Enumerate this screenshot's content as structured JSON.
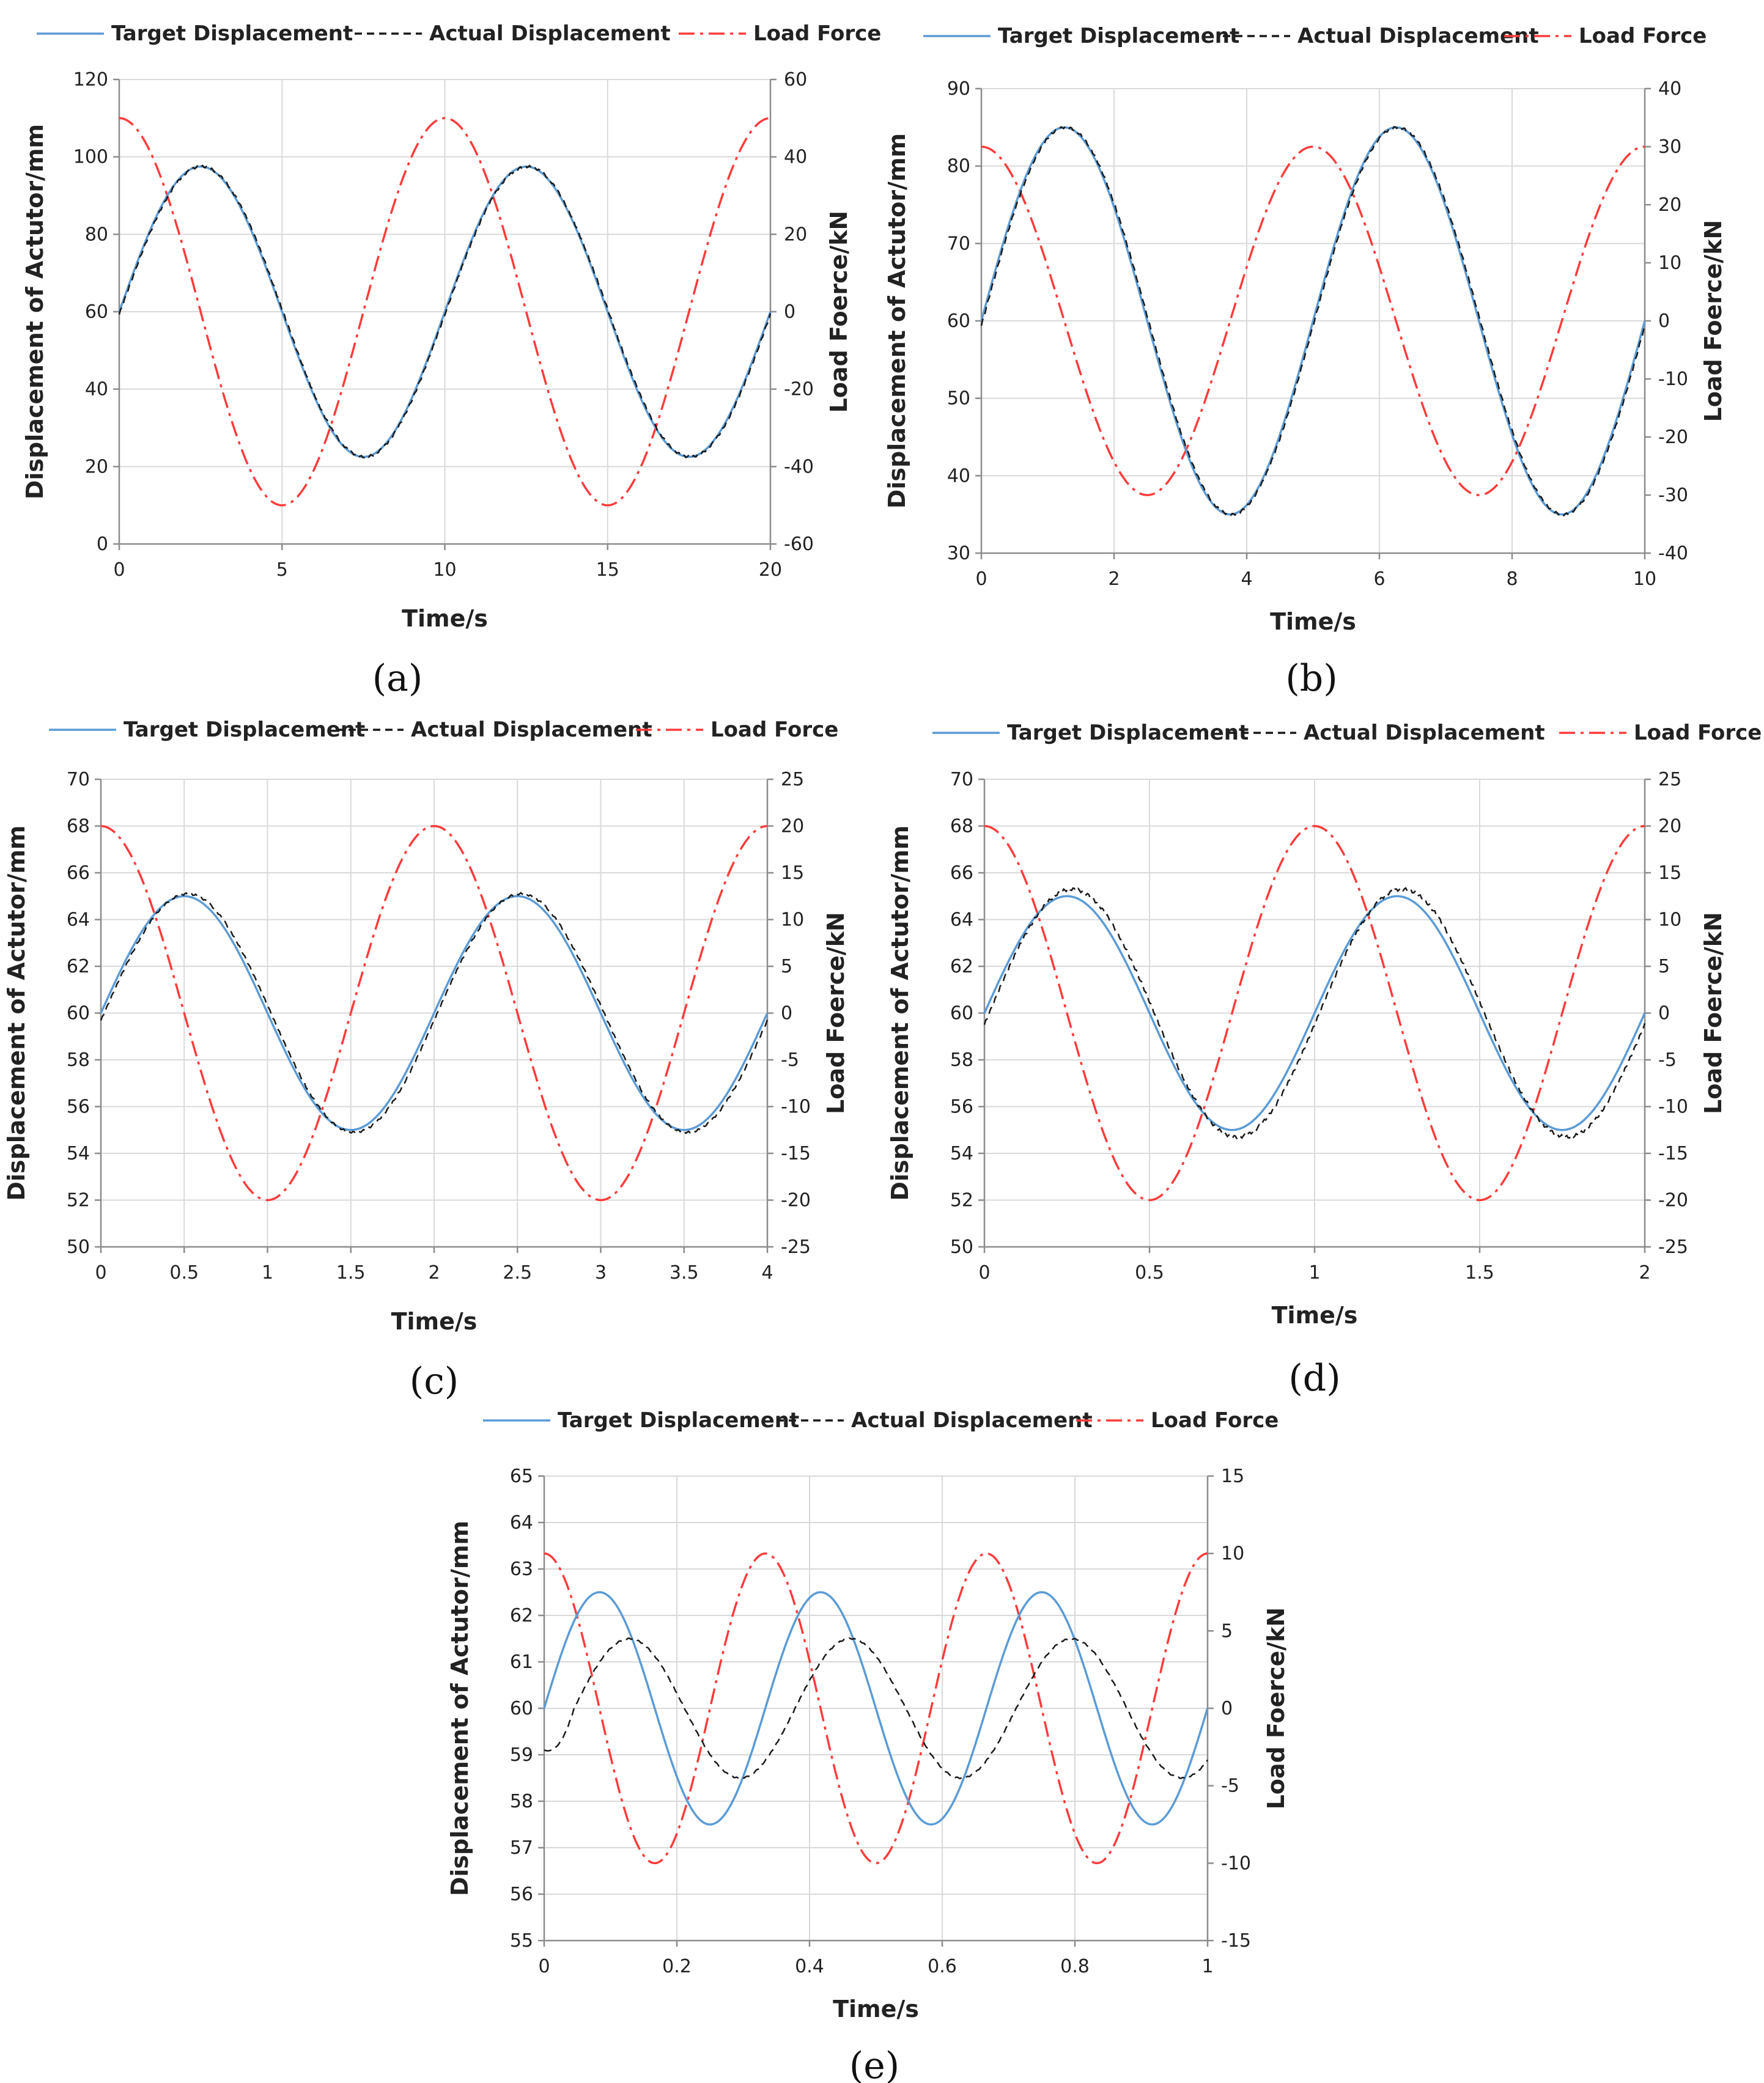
{
  "colors": {
    "target": "#5b9bd5",
    "actual": "#1a1a1a",
    "load": "#ff3b3b"
  },
  "chart_data": [
    {
      "id": "a",
      "caption": "(a)",
      "type": "line",
      "title": "",
      "legend": [
        "Target Displacement",
        "Actual Displacement",
        "Load Force"
      ],
      "xlabel": "Time/s",
      "ylabel": "Displacement of Actutor/mm",
      "y2label": "Load Foerce/kN",
      "xlim": [
        0,
        20
      ],
      "ylim": [
        0,
        120
      ],
      "y2lim": [
        -60,
        60
      ],
      "xticks": [
        "0",
        "5",
        "10",
        "15",
        "20"
      ],
      "xtick_values": [
        0,
        5,
        10,
        15,
        20
      ],
      "yticks": [
        "0",
        "20",
        "40",
        "60",
        "80",
        "100",
        "120"
      ],
      "ytick_values": [
        0,
        20,
        40,
        60,
        80,
        100,
        120
      ],
      "y2ticks": [
        "-60",
        "-40",
        "-20",
        "0",
        "20",
        "40",
        "60"
      ],
      "y2tick_values": [
        -60,
        -40,
        -20,
        0,
        20,
        40,
        60
      ],
      "series": [
        {
          "name": "Target Displacement",
          "axis": "left",
          "style": "solid",
          "offset": 60,
          "amplitude": 37.5,
          "period": 10,
          "phase": 0
        },
        {
          "name": "Actual Displacement",
          "axis": "left",
          "style": "dashed",
          "offset": 60,
          "amplitude": 37.5,
          "period": 10,
          "phase": 0,
          "lag": 0.03,
          "jitter": 0.3
        },
        {
          "name": "Load Force",
          "axis": "right",
          "style": "dashdot",
          "offset": 0,
          "amplitude": 50,
          "period": 10,
          "shape": "cosine"
        }
      ]
    },
    {
      "id": "b",
      "caption": "(b)",
      "type": "line",
      "title": "",
      "legend": [
        "Target Displacement",
        "Actual Displacement",
        "Load Force"
      ],
      "xlabel": "Time/s",
      "ylabel": "Displacement of Actutor/mm",
      "y2label": "Load Foerce/kN",
      "xlim": [
        0,
        10
      ],
      "ylim": [
        30,
        90
      ],
      "y2lim": [
        -40,
        40
      ],
      "xticks": [
        "0",
        "2",
        "4",
        "6",
        "8",
        "10"
      ],
      "xtick_values": [
        0,
        2,
        4,
        6,
        8,
        10
      ],
      "yticks": [
        "30",
        "40",
        "50",
        "60",
        "70",
        "80",
        "90"
      ],
      "ytick_values": [
        30,
        40,
        50,
        60,
        70,
        80,
        90
      ],
      "y2ticks": [
        "-40",
        "-30",
        "-20",
        "-10",
        "0",
        "10",
        "20",
        "30",
        "40"
      ],
      "y2tick_values": [
        -40,
        -30,
        -20,
        -10,
        0,
        10,
        20,
        30,
        40
      ],
      "series": [
        {
          "name": "Target Displacement",
          "axis": "left",
          "style": "solid",
          "offset": 60,
          "amplitude": 25,
          "period": 5,
          "phase": 0
        },
        {
          "name": "Actual Displacement",
          "axis": "left",
          "style": "dashed",
          "offset": 60,
          "amplitude": 25,
          "period": 5,
          "phase": 0,
          "lag": 0.02,
          "jitter": 0.3
        },
        {
          "name": "Load Force",
          "axis": "right",
          "style": "dashdot",
          "offset": 0,
          "amplitude": 30,
          "period": 5,
          "shape": "cosine"
        }
      ]
    },
    {
      "id": "c",
      "caption": "(c)",
      "type": "line",
      "title": "",
      "legend": [
        "Target Displacement",
        "Actual Displacement",
        "Load Force"
      ],
      "xlabel": "Time/s",
      "ylabel": "Displacement of Actutor/mm",
      "y2label": "Load Foerce/kN",
      "xlim": [
        0,
        4
      ],
      "ylim": [
        50,
        70
      ],
      "y2lim": [
        -25,
        25
      ],
      "xticks": [
        "0",
        "0.5",
        "1",
        "1.5",
        "2",
        "2.5",
        "3",
        "3.5",
        "4"
      ],
      "xtick_values": [
        0,
        0.5,
        1,
        1.5,
        2,
        2.5,
        3,
        3.5,
        4
      ],
      "yticks": [
        "50",
        "52",
        "54",
        "56",
        "58",
        "60",
        "62",
        "64",
        "66",
        "68",
        "70"
      ],
      "ytick_values": [
        50,
        52,
        54,
        56,
        58,
        60,
        62,
        64,
        66,
        68,
        70
      ],
      "y2ticks": [
        "-25",
        "-20",
        "-15",
        "-10",
        "-5",
        "0",
        "5",
        "10",
        "15",
        "20",
        "25"
      ],
      "y2tick_values": [
        -25,
        -20,
        -15,
        -10,
        -5,
        0,
        5,
        10,
        15,
        20,
        25
      ],
      "series": [
        {
          "name": "Target Displacement",
          "axis": "left",
          "style": "solid",
          "offset": 60,
          "amplitude": 5,
          "period": 2,
          "phase": 0
        },
        {
          "name": "Actual Displacement",
          "axis": "left",
          "style": "dashed",
          "offset": 60,
          "amplitude": 5.1,
          "period": 2,
          "phase": 0,
          "lag": 0.02,
          "jitter": 0.25
        },
        {
          "name": "Load Force",
          "axis": "right",
          "style": "dashdot",
          "offset": 0,
          "amplitude": 20,
          "period": 2,
          "shape": "cosine"
        }
      ]
    },
    {
      "id": "d",
      "caption": "(d)",
      "type": "line",
      "title": "",
      "legend": [
        "Target Displacement",
        "Actual Displacement",
        "Load Force"
      ],
      "xlabel": "Time/s",
      "ylabel": "Displacement of Actutor/mm",
      "y2label": "Load Foerce/kN",
      "xlim": [
        0,
        2
      ],
      "ylim": [
        50,
        70
      ],
      "y2lim": [
        -25,
        25
      ],
      "xticks": [
        "0",
        "0.5",
        "1",
        "1.5",
        "2"
      ],
      "xtick_values": [
        0,
        0.5,
        1,
        1.5,
        2
      ],
      "yticks": [
        "50",
        "52",
        "54",
        "56",
        "58",
        "60",
        "62",
        "64",
        "66",
        "68",
        "70"
      ],
      "ytick_values": [
        50,
        52,
        54,
        56,
        58,
        60,
        62,
        64,
        66,
        68,
        70
      ],
      "y2ticks": [
        "-25",
        "-20",
        "-15",
        "-10",
        "-5",
        "0",
        "5",
        "10",
        "15",
        "20",
        "25"
      ],
      "y2tick_values": [
        -25,
        -20,
        -15,
        -10,
        -5,
        0,
        5,
        10,
        15,
        20,
        25
      ],
      "series": [
        {
          "name": "Target Displacement",
          "axis": "left",
          "style": "solid",
          "offset": 60,
          "amplitude": 5,
          "period": 1,
          "phase": 0
        },
        {
          "name": "Actual Displacement",
          "axis": "left",
          "style": "dashed",
          "offset": 60,
          "amplitude": 5.3,
          "period": 1,
          "phase": 0,
          "lag": 0.015,
          "jitter": 0.4
        },
        {
          "name": "Load Force",
          "axis": "right",
          "style": "dashdot",
          "offset": 0,
          "amplitude": 20,
          "period": 1,
          "shape": "cosine"
        }
      ]
    },
    {
      "id": "e",
      "caption": "(e)",
      "type": "line",
      "title": "",
      "legend": [
        "Target Displacement",
        "Actual Displacement",
        "Load Force"
      ],
      "xlabel": "Time/s",
      "ylabel": "Displacement of Actutor/mm",
      "y2label": "Load Foerce/kN",
      "xlim": [
        0,
        1
      ],
      "ylim": [
        55,
        65
      ],
      "y2lim": [
        -15,
        15
      ],
      "xticks": [
        "0",
        "0.2",
        "0.4",
        "0.6",
        "0.8",
        "1"
      ],
      "xtick_values": [
        0,
        0.2,
        0.4,
        0.6,
        0.8,
        1
      ],
      "yticks": [
        "55",
        "56",
        "57",
        "58",
        "59",
        "60",
        "61",
        "62",
        "63",
        "64",
        "65"
      ],
      "ytick_values": [
        55,
        56,
        57,
        58,
        59,
        60,
        61,
        62,
        63,
        64,
        65
      ],
      "y2ticks": [
        "-15",
        "-10",
        "-5",
        "0",
        "5",
        "10",
        "15"
      ],
      "y2tick_values": [
        -15,
        -10,
        -5,
        0,
        5,
        10,
        15
      ],
      "series": [
        {
          "name": "Target Displacement",
          "axis": "left",
          "style": "solid",
          "offset": 60,
          "amplitude": 2.5,
          "period": 0.3333,
          "phase": 0
        },
        {
          "name": "Actual Displacement",
          "axis": "left",
          "style": "dashed",
          "offset": 60,
          "amplitude": 1.5,
          "period": 0.3333,
          "phase": 0,
          "lag": 0.045,
          "start_value": 59.1,
          "jitter": 0.15
        },
        {
          "name": "Load Force",
          "axis": "right",
          "style": "dashdot",
          "offset": 0,
          "amplitude": 10,
          "period": 0.3333,
          "shape": "cosine"
        }
      ]
    }
  ]
}
